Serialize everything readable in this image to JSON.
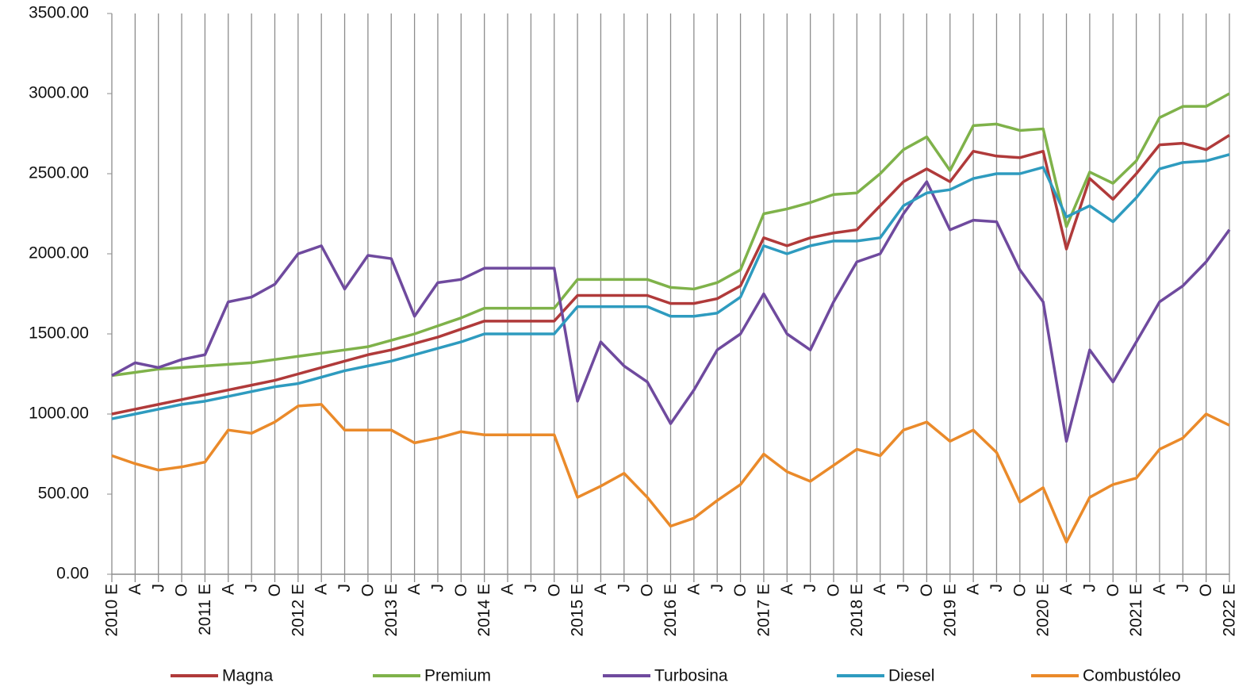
{
  "chart_data": {
    "type": "line",
    "categories": [
      "2010 E",
      "A",
      "J",
      "O",
      "2011 E",
      "A",
      "J",
      "O",
      "2012 E",
      "A",
      "J",
      "O",
      "2013 E",
      "A",
      "J",
      "O",
      "2014 E",
      "A",
      "J",
      "O",
      "2015 E",
      "A",
      "J",
      "O",
      "2016 E",
      "A",
      "J",
      "O",
      "2017 E",
      "A",
      "J",
      "O",
      "2018 E",
      "A",
      "J",
      "O",
      "2019 E",
      "A",
      "J",
      "O",
      "2020 E",
      "A",
      "J",
      "O",
      "2021 E",
      "A",
      "J",
      "O",
      "2022 E"
    ],
    "series": [
      {
        "name": "Magna",
        "color": "#b03a3a",
        "values": [
          1000,
          1030,
          1060,
          1090,
          1120,
          1150,
          1180,
          1210,
          1250,
          1290,
          1330,
          1370,
          1400,
          1440,
          1480,
          1530,
          1580,
          1580,
          1580,
          1580,
          1740,
          1740,
          1740,
          1740,
          1690,
          1690,
          1720,
          1800,
          2100,
          2050,
          2100,
          2130,
          2150,
          2300,
          2450,
          2530,
          2450,
          2640,
          2610,
          2600,
          2640,
          2030,
          2470,
          2340,
          2500,
          2680,
          2690,
          2650,
          2740
        ]
      },
      {
        "name": "Premium",
        "color": "#7fb24a",
        "values": [
          1240,
          1260,
          1280,
          1290,
          1300,
          1310,
          1320,
          1340,
          1360,
          1380,
          1400,
          1420,
          1460,
          1500,
          1550,
          1600,
          1660,
          1660,
          1660,
          1660,
          1840,
          1840,
          1840,
          1840,
          1790,
          1780,
          1820,
          1900,
          2250,
          2280,
          2320,
          2370,
          2380,
          2500,
          2650,
          2730,
          2520,
          2800,
          2810,
          2770,
          2780,
          2170,
          2510,
          2440,
          2580,
          2850,
          2920,
          2920,
          3000
        ]
      },
      {
        "name": "Turbosina",
        "color": "#6f4a9e",
        "values": [
          1240,
          1320,
          1290,
          1340,
          1370,
          1700,
          1730,
          1810,
          2000,
          2050,
          1780,
          1990,
          1970,
          1610,
          1820,
          1840,
          1910,
          1910,
          1910,
          1910,
          1080,
          1450,
          1300,
          1200,
          940,
          1150,
          1400,
          1500,
          1750,
          1500,
          1400,
          1700,
          1950,
          2000,
          2250,
          2450,
          2150,
          2210,
          2200,
          1900,
          1700,
          830,
          1400,
          1200,
          1450,
          1700,
          1800,
          1950,
          2150
        ]
      },
      {
        "name": "Diesel",
        "color": "#2e9bbf",
        "values": [
          970,
          1000,
          1030,
          1060,
          1080,
          1110,
          1140,
          1170,
          1190,
          1230,
          1270,
          1300,
          1330,
          1370,
          1410,
          1450,
          1500,
          1500,
          1500,
          1500,
          1670,
          1670,
          1670,
          1670,
          1610,
          1610,
          1630,
          1730,
          2050,
          2000,
          2050,
          2080,
          2080,
          2100,
          2300,
          2380,
          2400,
          2470,
          2500,
          2500,
          2540,
          2230,
          2300,
          2200,
          2350,
          2530,
          2570,
          2580,
          2620
        ]
      },
      {
        "name": "Combustóleo",
        "color": "#ea8a2a",
        "values": [
          740,
          690,
          650,
          670,
          700,
          900,
          880,
          950,
          1050,
          1060,
          900,
          900,
          900,
          820,
          850,
          890,
          870,
          870,
          870,
          870,
          480,
          550,
          630,
          480,
          300,
          350,
          460,
          560,
          750,
          640,
          580,
          680,
          780,
          740,
          900,
          950,
          830,
          900,
          760,
          450,
          540,
          200,
          480,
          560,
          600,
          780,
          850,
          1000,
          930
        ]
      }
    ],
    "ylim": [
      0,
      3500
    ],
    "yticks": [
      {
        "value": 0,
        "label": "0.00"
      },
      {
        "value": 500,
        "label": "500.00"
      },
      {
        "value": 1000,
        "label": "1000.00"
      },
      {
        "value": 1500,
        "label": "1500.00"
      },
      {
        "value": 2000,
        "label": "2000.00"
      },
      {
        "value": 2500,
        "label": "2500.00"
      },
      {
        "value": 3000,
        "label": "3000.00"
      },
      {
        "value": 3500,
        "label": "3500.00"
      }
    ],
    "x_grid": true
  }
}
